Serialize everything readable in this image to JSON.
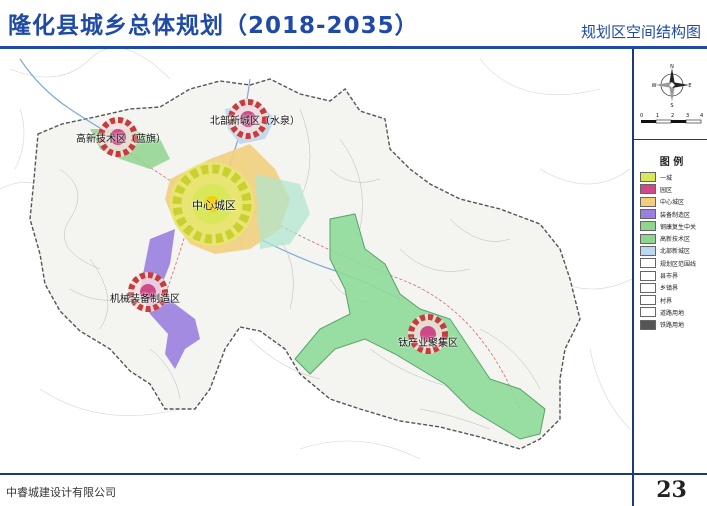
{
  "header": {
    "title": "隆化县城乡总体规划（2018-2035）",
    "subtitle": "规划区空间结构图"
  },
  "map": {
    "zones": [
      {
        "id": "zone-center",
        "label": "中心城区"
      },
      {
        "id": "zone-north",
        "label": "北部新城区（水泉）"
      },
      {
        "id": "zone-hitech",
        "label": "高新技术区（蓝旗）"
      },
      {
        "id": "zone-machinery",
        "label": "机械装备制造区"
      },
      {
        "id": "zone-titanium",
        "label": "钛产业聚集区"
      }
    ]
  },
  "legend": {
    "compass_letters": {
      "n": "N",
      "s": "S",
      "e": "E",
      "w": "W"
    },
    "scale_ticks": [
      "0",
      "1",
      "2",
      "3",
      "4"
    ],
    "title": "图 例",
    "items": [
      {
        "label": "一城",
        "color": "#d8e85a"
      },
      {
        "label": "园区",
        "color": "#d04a8a"
      },
      {
        "label": "中心城区",
        "color": "#f2cf7e"
      },
      {
        "label": "装备制造区",
        "color": "#9a7fe0"
      },
      {
        "label": "钢康复生中关",
        "color": "#8fd48f"
      },
      {
        "label": "高新技术区",
        "color": "#8fd48f"
      },
      {
        "label": "北部新城区",
        "color": "#bcd7f0"
      },
      {
        "label": "规划区范围线",
        "color": "#ffffff"
      },
      {
        "label": "县市界",
        "color": "#ffffff"
      },
      {
        "label": "乡镇界",
        "color": "#ffffff"
      },
      {
        "label": "村界",
        "color": "#ffffff"
      },
      {
        "label": "道路用地",
        "color": "#ffffff"
      },
      {
        "label": "铁路用地",
        "color": "#555555"
      }
    ]
  },
  "footer": {
    "company": "中睿城建设计有限公司",
    "page_number": "23"
  }
}
